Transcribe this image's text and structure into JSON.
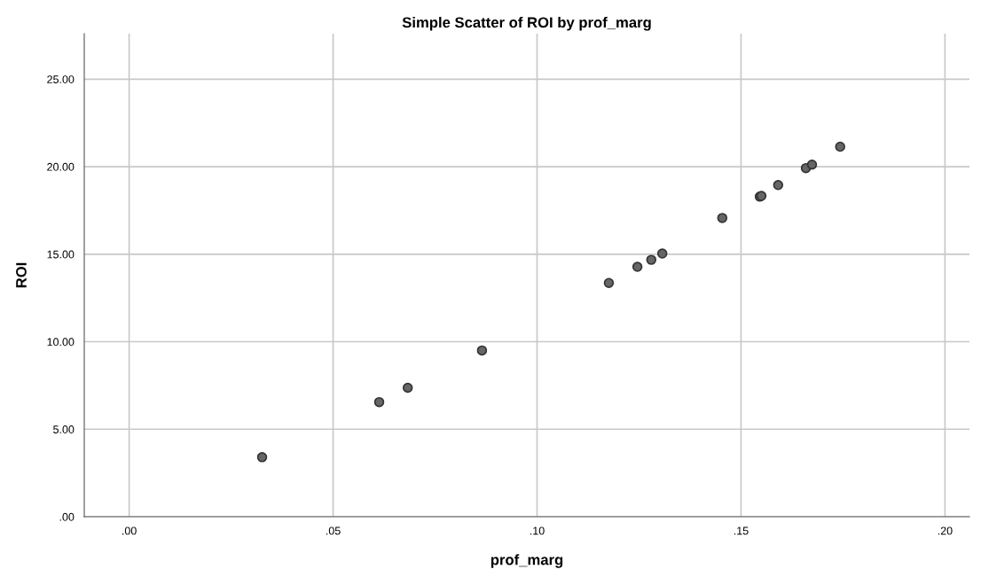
{
  "chart_data": {
    "type": "scatter",
    "title": "Simple Scatter of ROI by prof_marg",
    "xlabel": "prof_marg",
    "ylabel": "ROI",
    "x": [
      0.0326,
      0.0613,
      0.0683,
      0.0865,
      0.1176,
      0.1246,
      0.128,
      0.1307,
      0.1454,
      0.1546,
      0.155,
      0.1591,
      0.1659,
      0.1674,
      0.1743
    ],
    "series": [
      {
        "color": "#666666",
        "values": [
          3.4,
          6.55,
          7.37,
          9.5,
          13.36,
          14.28,
          14.68,
          15.04,
          17.07,
          18.29,
          18.33,
          18.95,
          19.92,
          20.12,
          21.14
        ]
      }
    ],
    "xlim": [
      -0.011,
      0.206
    ],
    "ylim": [
      0,
      27.6
    ],
    "xticks": [
      {
        "value": 0,
        "label": ".00"
      },
      {
        "value": 0.05,
        "label": ".05"
      },
      {
        "value": 0.1,
        "label": ".10"
      },
      {
        "value": 0.15,
        "label": ".15"
      },
      {
        "value": 0.2,
        "label": ".20"
      }
    ],
    "yticks": [
      {
        "value": 0,
        "label": ".00"
      },
      {
        "value": 5,
        "label": "5.00"
      },
      {
        "value": 10,
        "label": "10.00"
      },
      {
        "value": 15,
        "label": "15.00"
      },
      {
        "value": 20,
        "label": "20.00"
      },
      {
        "value": 25,
        "label": "25.00"
      }
    ],
    "grid": true,
    "marker": "circle",
    "legend": false
  }
}
